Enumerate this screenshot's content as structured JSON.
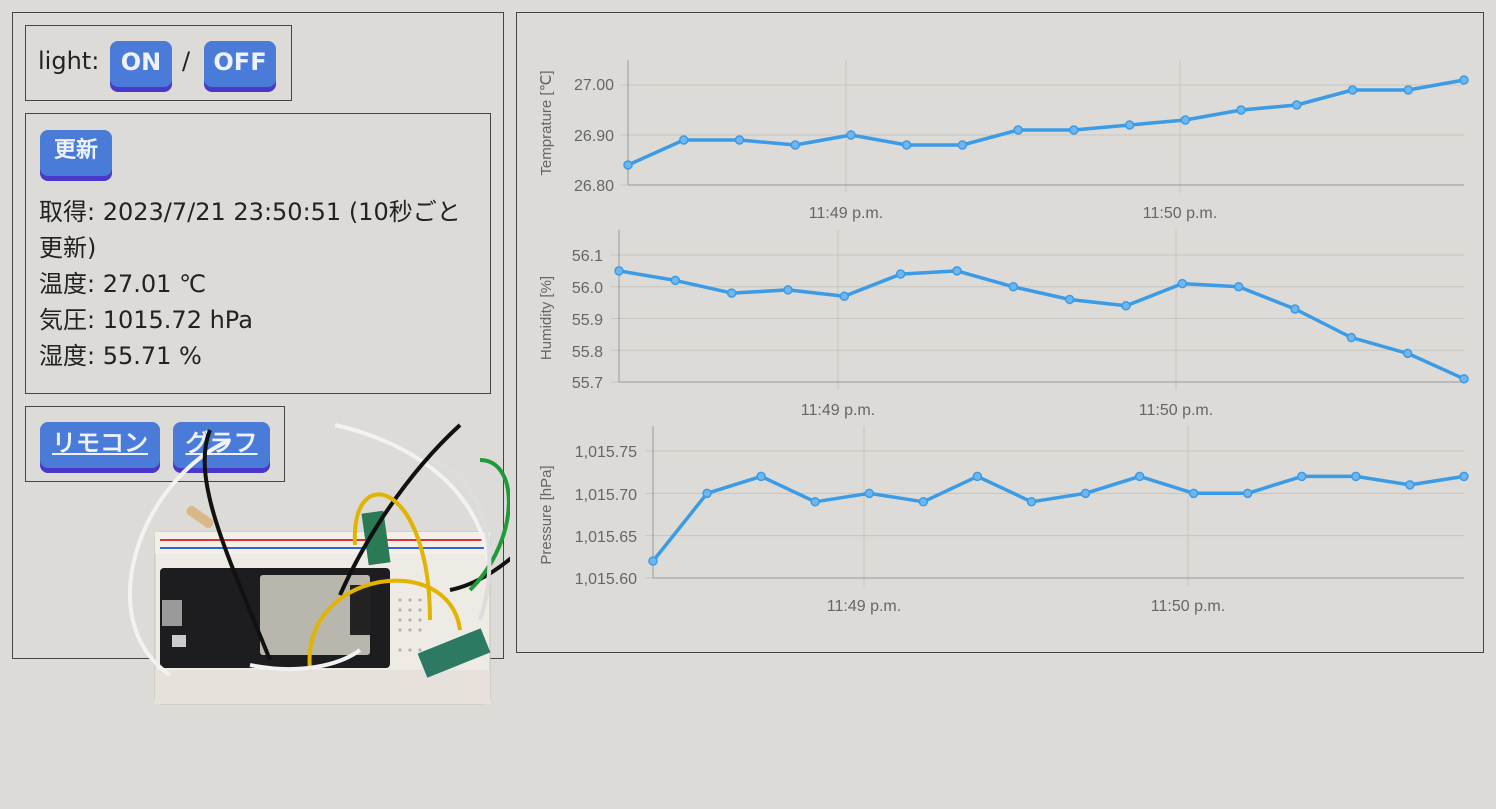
{
  "light": {
    "label": "light:",
    "on_label": "ON",
    "separator": "/",
    "off_label": "OFF"
  },
  "status": {
    "refresh_label": "更新",
    "acquired_line1": "取得: 2023/7/21 23:50:51 (10秒ごと",
    "acquired_line2": "更新)",
    "temperature": "温度: 27.01 ℃",
    "pressure": "気圧: 1015.72 hPa",
    "humidity": "湿度: 55.71 %"
  },
  "links": {
    "remote_label": "リモコン",
    "graph_label": "グラフ"
  },
  "photo": {
    "description_icon": "breadboard-photo"
  },
  "colors": {
    "background": "#dcdbd7",
    "button": "#4a7bd8",
    "button_shadow": "#4a38c9",
    "series": "#3b9be6"
  },
  "chart_data": [
    {
      "type": "line",
      "ylabel": "Temprature [℃]",
      "x_tick_labels": [
        "11:49 p.m.",
        "11:50 p.m."
      ],
      "y_tick_labels": [
        "27.00",
        "26.90",
        "26.80"
      ],
      "ylim": [
        26.8,
        27.05
      ],
      "y_ticks": [
        27.0,
        26.9,
        26.8
      ],
      "values": [
        26.84,
        26.89,
        26.89,
        26.88,
        26.9,
        26.88,
        26.88,
        26.91,
        26.91,
        26.92,
        26.93,
        26.95,
        26.96,
        26.99,
        26.99,
        27.01
      ]
    },
    {
      "type": "line",
      "ylabel": "Humidity [%]",
      "x_tick_labels": [
        "11:49 p.m.",
        "11:50 p.m."
      ],
      "y_tick_labels": [
        "56.1",
        "56.0",
        "55.9",
        "55.8",
        "55.7"
      ],
      "ylim": [
        55.7,
        56.1
      ],
      "y_ticks": [
        56.1,
        56.0,
        55.9,
        55.8,
        55.7
      ],
      "values": [
        56.05,
        56.02,
        55.98,
        55.99,
        55.97,
        56.04,
        56.05,
        56.0,
        55.96,
        55.94,
        56.01,
        56.0,
        55.93,
        55.84,
        55.79,
        55.71
      ]
    },
    {
      "type": "line",
      "ylabel": "Pressure [hPa]",
      "x_tick_labels": [
        "11:49 p.m.",
        "11:50 p.m."
      ],
      "y_tick_labels": [
        "1,015.75",
        "1,015.70",
        "1,015.65",
        "1,015.60"
      ],
      "ylim": [
        1015.6,
        1015.75
      ],
      "y_ticks": [
        1015.75,
        1015.7,
        1015.65,
        1015.6
      ],
      "values": [
        1015.62,
        1015.7,
        1015.72,
        1015.69,
        1015.7,
        1015.69,
        1015.72,
        1015.69,
        1015.7,
        1015.72,
        1015.7,
        1015.7,
        1015.72,
        1015.72,
        1015.71,
        1015.72
      ]
    }
  ]
}
